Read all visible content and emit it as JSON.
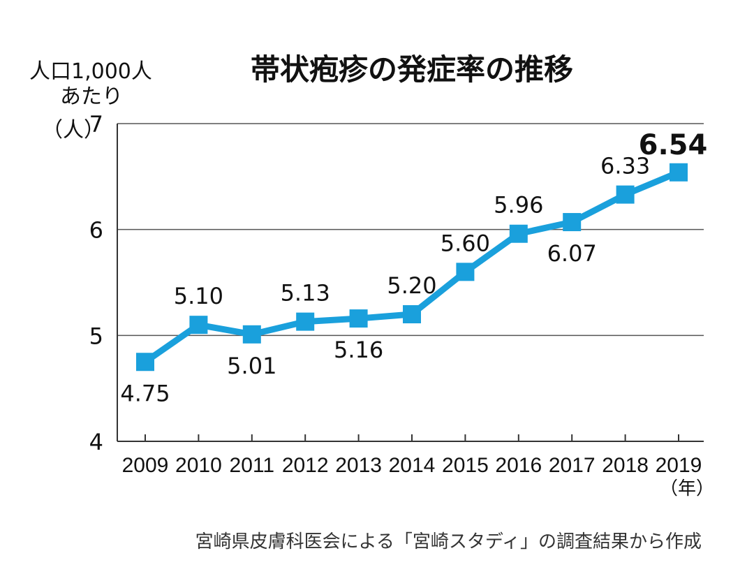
{
  "chart_data": {
    "type": "line",
    "title": "帯状疱疹の発症率の推移",
    "ylabel_lines": [
      "人口1,000人",
      "あたり",
      "（人）"
    ],
    "xlabel_unit": "（年）",
    "x": [
      "2009",
      "2010",
      "2011",
      "2012",
      "2013",
      "2014",
      "2015",
      "2016",
      "2017",
      "2018",
      "2019"
    ],
    "series": [
      {
        "values": [
          4.75,
          5.1,
          5.01,
          5.13,
          5.16,
          5.2,
          5.6,
          5.96,
          6.07,
          6.33,
          6.54
        ],
        "data_labels": [
          "4.75",
          "5.10",
          "5.01",
          "5.13",
          "5.16",
          "5.20",
          "5.60",
          "5.96",
          "6.07",
          "6.33",
          "6.54"
        ],
        "label_position": [
          "below",
          "above",
          "below",
          "above",
          "below",
          "above",
          "above",
          "above",
          "below",
          "above",
          "above"
        ]
      }
    ],
    "yticks": [
      "4",
      "5",
      "6",
      "7"
    ],
    "ylim": [
      4,
      7
    ],
    "grid": true,
    "line_color": "#1aa0dc",
    "source": "宮崎県皮膚科医会による「宮崎スタディ」の調査結果から作成"
  }
}
